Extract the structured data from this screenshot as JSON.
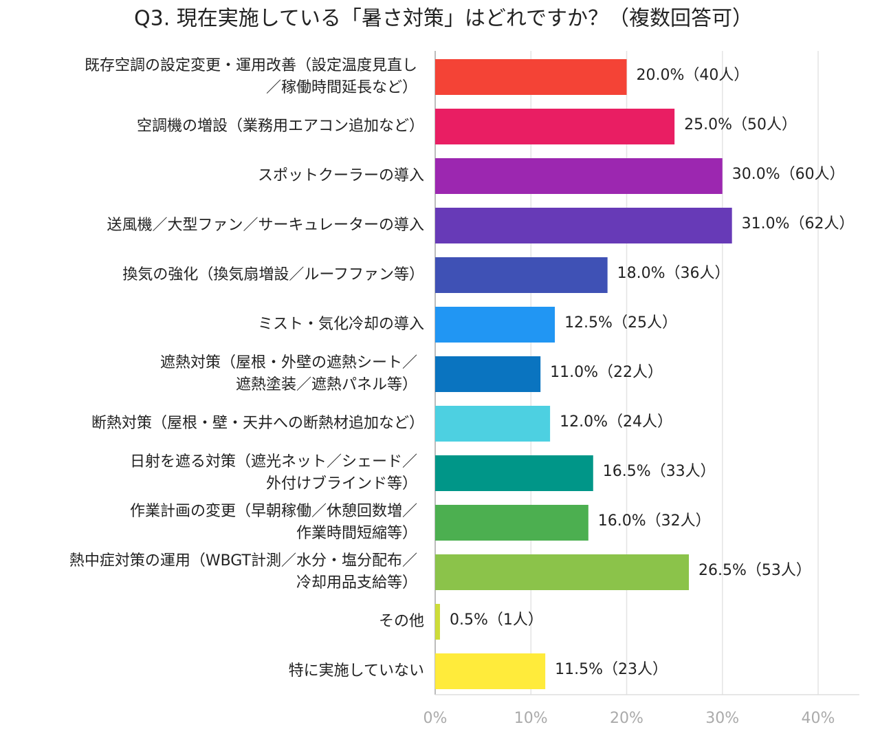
{
  "chart_data": {
    "type": "bar",
    "orientation": "horizontal",
    "title": "Q3. 現在実施している「暑さ対策」はどれですか？（複数回答可）",
    "categories": [
      "既存空調の設定変更・運用改善（設定温度見直し\n／稼働時間延長など）",
      "空調機の増設（業務用エアコン追加など）",
      "スポットクーラーの導入",
      "送風機／大型ファン／サーキュレーターの導入",
      "換気の強化（換気扇増設／ルーフファン等）",
      "ミスト・気化冷却の導入",
      "遮熱対策（屋根・外壁の遮熱シート／\n遮熱塗装／遮熱パネル等）",
      "断熱対策（屋根・壁・天井への断熱材追加など）",
      "日射を遮る対策（遮光ネット／シェード／\n外付けブラインド等）",
      "作業計画の変更（早朝稼働／休憩回数増／\n作業時間短縮等）",
      "熱中症対策の運用（WBGT計測／水分・塩分配布／\n冷却用品支給等）",
      "その他",
      "特に実施していない"
    ],
    "values": [
      20.0,
      25.0,
      30.0,
      31.0,
      18.0,
      12.5,
      11.0,
      12.0,
      16.5,
      16.0,
      26.5,
      0.5,
      11.5
    ],
    "value_labels": [
      "20.0%（40人）",
      "25.0%（50人）",
      "30.0%（60人）",
      "31.0%（62人）",
      "18.0%（36人）",
      "12.5%（25人）",
      "11.0%（22人）",
      "12.0%（24人）",
      "16.5%（33人）",
      "16.0%（32人）",
      "26.5%（53人）",
      "0.5%（1人）",
      "11.5%（23人）"
    ],
    "colors": [
      "#f44336",
      "#e91e63",
      "#9c27b0",
      "#673ab7",
      "#3f51b5",
      "#2196f3",
      "#0a74c0",
      "#4dd0e1",
      "#009688",
      "#4caf50",
      "#8bc34a",
      "#cddc39",
      "#ffeb3b"
    ],
    "xlim": [
      0,
      40
    ],
    "xticks": [
      {
        "value": 0,
        "label": "0%"
      },
      {
        "value": 10,
        "label": "10%"
      },
      {
        "value": 20,
        "label": "20%"
      },
      {
        "value": 30,
        "label": "30%"
      },
      {
        "value": 40,
        "label": "40%"
      }
    ],
    "grid": true
  }
}
